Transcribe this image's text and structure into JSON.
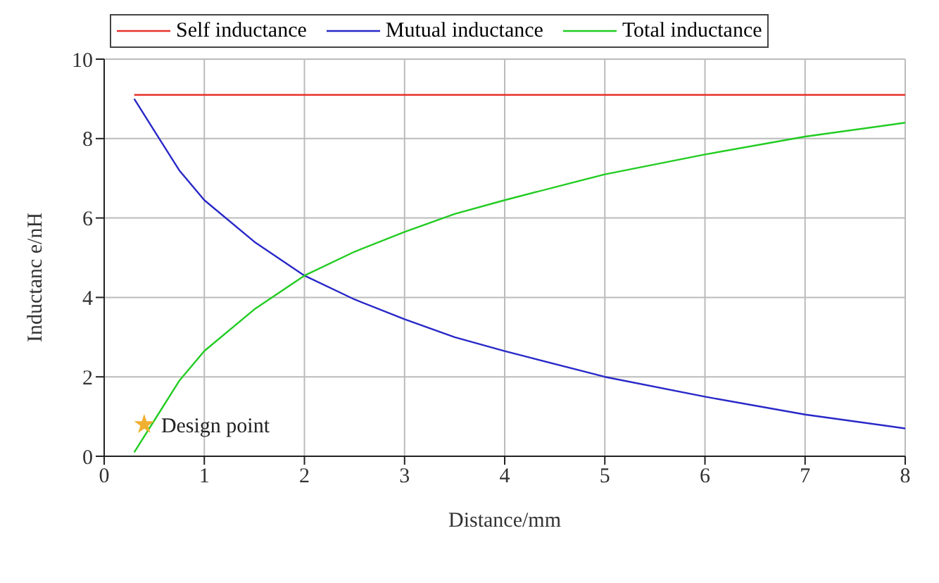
{
  "chart_data": {
    "type": "line",
    "xlabel": "Distance/mm",
    "ylabel": "Inductanc e/nH",
    "xlim": [
      0,
      8
    ],
    "xticks": [
      0,
      1,
      2,
      3,
      4,
      5,
      6,
      7,
      8
    ],
    "ylim": [
      0,
      10
    ],
    "yticks": [
      0,
      2,
      4,
      6,
      8,
      10
    ],
    "grid": true,
    "legend": "top",
    "line_style": "solid",
    "marker": "none",
    "series": [
      {
        "name": "Self inductance",
        "color": "#e8332a",
        "x": [
          0.3,
          8
        ],
        "values": [
          9.1,
          9.1
        ]
      },
      {
        "name": "Mutual inductance",
        "color": "#2828c8",
        "x": [
          0.3,
          0.5,
          0.75,
          1,
          1.5,
          2,
          2.5,
          3,
          3.5,
          4,
          5,
          6,
          7,
          8
        ],
        "values": [
          9.0,
          8.2,
          7.2,
          6.45,
          5.4,
          4.55,
          3.95,
          3.45,
          3.0,
          2.65,
          2.0,
          1.5,
          1.05,
          0.7
        ]
      },
      {
        "name": "Total inductance",
        "color": "#22cc22",
        "x": [
          0.3,
          0.5,
          0.75,
          1,
          1.5,
          2,
          2.5,
          3,
          3.5,
          4,
          5,
          6,
          7,
          8
        ],
        "values": [
          0.1,
          0.9,
          1.9,
          2.65,
          3.7,
          4.55,
          5.15,
          5.65,
          6.1,
          6.45,
          7.1,
          7.6,
          8.05,
          8.4
        ]
      },
      {
        "type": "scatter",
        "color": "#f0b030",
        "marker": "star",
        "x": [
          0.4
        ],
        "values": [
          0.8
        ]
      }
    ],
    "annotations": [
      {
        "text": "Design point",
        "x": 0.4,
        "y": 0.8
      }
    ]
  }
}
